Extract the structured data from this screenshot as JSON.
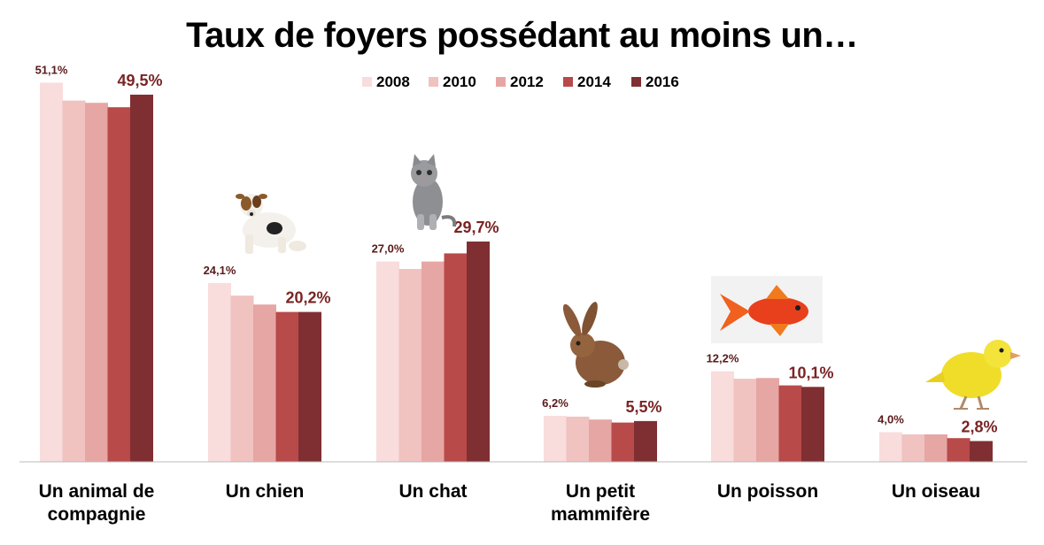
{
  "chart_data": {
    "type": "bar",
    "title": "Taux de foyers possédant au moins un…",
    "categories": [
      [
        "Un animal de",
        "compagnie"
      ],
      [
        "Un chien"
      ],
      [
        "Un chat"
      ],
      [
        "Un petit",
        "mammifère"
      ],
      [
        "Un poisson"
      ],
      [
        "Un oiseau"
      ]
    ],
    "series": [
      {
        "name": "2008",
        "color": "#f9dcdc",
        "values": [
          51.1,
          24.1,
          27.0,
          6.2,
          12.2,
          4.0
        ]
      },
      {
        "name": "2010",
        "color": "#f0c2c0",
        "values": [
          48.7,
          22.4,
          26.0,
          6.1,
          11.2,
          3.7
        ]
      },
      {
        "name": "2012",
        "color": "#e6a6a4",
        "values": [
          48.4,
          21.2,
          27.0,
          5.7,
          11.3,
          3.7
        ]
      },
      {
        "name": "2014",
        "color": "#b84a4a",
        "values": [
          47.8,
          20.2,
          28.1,
          5.3,
          10.3,
          3.2
        ]
      },
      {
        "name": "2016",
        "color": "#7f2f31",
        "values": [
          49.5,
          20.2,
          29.7,
          5.5,
          10.1,
          2.8
        ]
      }
    ],
    "data_labels": {
      "first": [
        "51,1%",
        "24,1%",
        "27,0%",
        "6,2%",
        "12,2%",
        "4,0%"
      ],
      "last": [
        "49,5%",
        "20,2%",
        "29,7%",
        "5,5%",
        "10,1%",
        "2,8%"
      ]
    },
    "legend_position": "top",
    "ylim": [
      0,
      52
    ],
    "grid": false,
    "icons": [
      "",
      "dog-icon",
      "cat-icon",
      "rabbit-icon",
      "goldfish-icon",
      "canary-icon"
    ]
  }
}
